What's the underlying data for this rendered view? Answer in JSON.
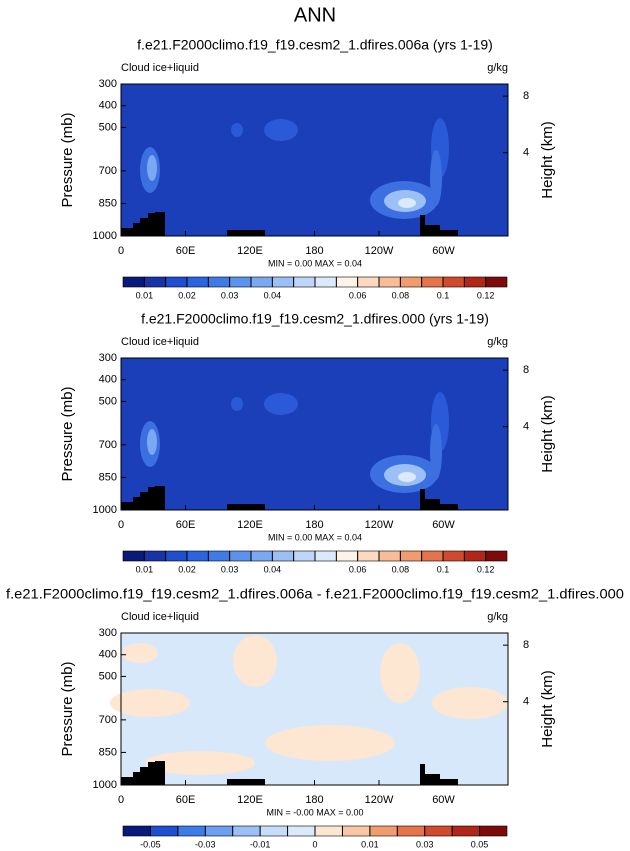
{
  "page_title": "ANN",
  "chart_data": [
    {
      "type": "contour",
      "title": "f.e21.F2000climo.f19_f19.cesm2_1.dfires.006a (yrs 1-19)",
      "left_label": "Cloud ice+liquid",
      "right_label": "g/kg",
      "ylabel": "Pressure (mb)",
      "y2label": "Height (km)",
      "xlim": [
        0,
        360
      ],
      "xticks": [
        0,
        {
          "value": 60,
          "label": "60E"
        },
        {
          "value": 120,
          "label": "120E"
        },
        180,
        {
          "value": 240,
          "label": "120W"
        },
        {
          "value": 300,
          "label": "60W"
        }
      ],
      "ylim": [
        1000,
        300
      ],
      "yticks": [
        300,
        400,
        500,
        700,
        850,
        1000
      ],
      "y2ticks": [
        4,
        8
      ],
      "stats": "MIN =   0.00  MAX =   0.04",
      "levels": [
        0.01,
        0.015,
        0.02,
        0.025,
        0.03,
        0.035,
        0.04,
        0.045,
        0.05,
        0.055,
        0.06,
        0.07,
        0.08,
        0.09,
        0.1,
        0.11,
        0.12
      ],
      "colorbar_ticks": [
        0.01,
        0.02,
        0.03,
        0.04,
        0.06,
        0.08,
        0.1,
        0.12
      ],
      "colors": [
        "#0a1a7a",
        "#1633a8",
        "#1f4ed0",
        "#2a64e0",
        "#3c7be8",
        "#5a92ee",
        "#7aa8f2",
        "#9cc0f6",
        "#bdd6fa",
        "#dbe9fc",
        "#fff2e6",
        "#fcd9bf",
        "#f8bc97",
        "#f29b6e",
        "#e7734a",
        "#d24a2d",
        "#b2261a",
        "#7f0a0a"
      ]
    },
    {
      "type": "contour",
      "title": "f.e21.F2000climo.f19_f19.cesm2_1.dfires.000 (yrs 1-19)",
      "left_label": "Cloud ice+liquid",
      "right_label": "g/kg",
      "ylabel": "Pressure (mb)",
      "y2label": "Height (km)",
      "xlim": [
        0,
        360
      ],
      "xticks": [
        0,
        {
          "value": 60,
          "label": "60E"
        },
        {
          "value": 120,
          "label": "120E"
        },
        180,
        {
          "value": 240,
          "label": "120W"
        },
        {
          "value": 300,
          "label": "60W"
        }
      ],
      "ylim": [
        1000,
        300
      ],
      "yticks": [
        300,
        400,
        500,
        700,
        850,
        1000
      ],
      "y2ticks": [
        4,
        8
      ],
      "stats": "MIN =   0.00  MAX =   0.04",
      "levels": [
        0.01,
        0.015,
        0.02,
        0.025,
        0.03,
        0.035,
        0.04,
        0.045,
        0.05,
        0.055,
        0.06,
        0.07,
        0.08,
        0.09,
        0.1,
        0.11,
        0.12
      ],
      "colorbar_ticks": [
        0.01,
        0.02,
        0.03,
        0.04,
        0.06,
        0.08,
        0.1,
        0.12
      ],
      "colors": [
        "#0a1a7a",
        "#1633a8",
        "#1f4ed0",
        "#2a64e0",
        "#3c7be8",
        "#5a92ee",
        "#7aa8f2",
        "#9cc0f6",
        "#bdd6fa",
        "#dbe9fc",
        "#fff2e6",
        "#fcd9bf",
        "#f8bc97",
        "#f29b6e",
        "#e7734a",
        "#d24a2d",
        "#b2261a",
        "#7f0a0a"
      ]
    },
    {
      "type": "contour",
      "title": "f.e21.F2000climo.f19_f19.cesm2_1.dfires.006a - f.e21.F2000climo.f19_f19.cesm2_1.dfires.000",
      "left_label": "Cloud ice+liquid",
      "right_label": "g/kg",
      "ylabel": "Pressure (mb)",
      "y2label": "Height (km)",
      "xlim": [
        0,
        360
      ],
      "xticks": [
        0,
        {
          "value": 60,
          "label": "60E"
        },
        {
          "value": 120,
          "label": "120E"
        },
        180,
        {
          "value": 240,
          "label": "120W"
        },
        {
          "value": 300,
          "label": "60W"
        }
      ],
      "ylim": [
        1000,
        300
      ],
      "yticks": [
        300,
        400,
        500,
        700,
        850,
        1000
      ],
      "y2ticks": [
        4,
        8
      ],
      "stats": "MIN =  -0.00  MAX =   0.00",
      "levels": [
        -0.05,
        -0.04,
        -0.03,
        -0.02,
        -0.01,
        -0.005,
        0,
        0.005,
        0.01,
        0.02,
        0.03,
        0.04,
        0.05
      ],
      "colorbar_ticks": [
        -0.05,
        -0.03,
        -0.01,
        0,
        0.01,
        0.03,
        0.05
      ],
      "colors": [
        "#0a1a7a",
        "#1f4ed0",
        "#3c7be8",
        "#6b9ff0",
        "#9cc0f6",
        "#c5dcfa",
        "#dbe9fc",
        "#fde6d2",
        "#f8c8a4",
        "#f29b6e",
        "#e7734a",
        "#d24a2d",
        "#b2261a",
        "#7f0a0a"
      ]
    }
  ]
}
